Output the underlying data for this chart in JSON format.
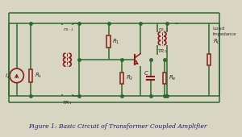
{
  "bg_color": "#d8d5c2",
  "wire_color": "#2d6b2d",
  "component_color": "#8b1a1a",
  "text_color": "#2b2b2b",
  "caption_color": "#1a1a6e",
  "title": "Figure 1: Basic Circuit of Transformer Coupled Amplifier",
  "figsize": [
    3.0,
    1.7
  ],
  "dpi": 100
}
